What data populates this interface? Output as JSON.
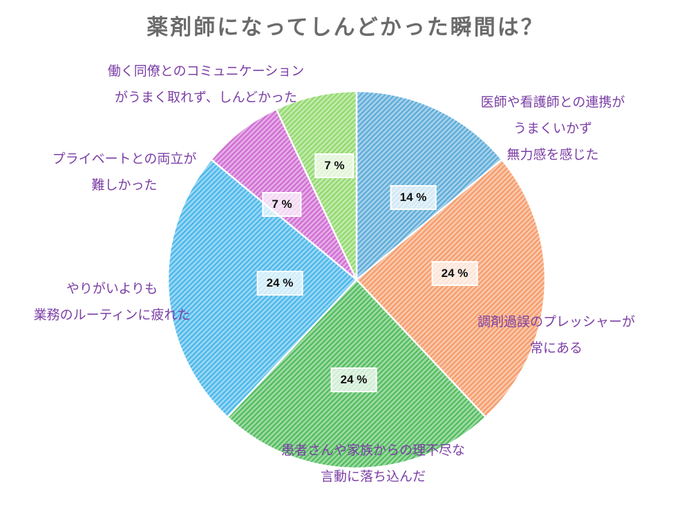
{
  "chart_data": {
    "type": "pie",
    "title": "薬剤師になってしんどかった瞬間は？",
    "start": "top",
    "direction": "clockwise",
    "slices": [
      {
        "label_lines": [
          "医師や看護師との連携が",
          "うまくいかず",
          "無力感を感じた"
        ],
        "value": 14,
        "pct_label": "14 %",
        "color": "#5aaad8"
      },
      {
        "label_lines": [
          "調剤過誤のプレッシャーが",
          "常にある"
        ],
        "value": 24,
        "pct_label": "24 %",
        "color": "#f59a68"
      },
      {
        "label_lines": [
          "患者さんや家族からの理不尽な",
          "言動に落ち込んだ"
        ],
        "value": 24,
        "pct_label": "24 %",
        "color": "#4fbb5a"
      },
      {
        "label_lines": [
          "やりがいよりも",
          "業務のルーティンに疲れた"
        ],
        "value": 24,
        "pct_label": "24 %",
        "color": "#46b6ea"
      },
      {
        "label_lines": [
          "プライベートとの両立が",
          "難しかった"
        ],
        "value": 7,
        "pct_label": "7 %",
        "color": "#d06ad2"
      },
      {
        "label_lines": [
          "働く同僚とのコミュニケーション",
          "がうまく取れず、しんどかった"
        ],
        "value": 7,
        "pct_label": "7 %",
        "color": "#8fd86a"
      }
    ]
  }
}
